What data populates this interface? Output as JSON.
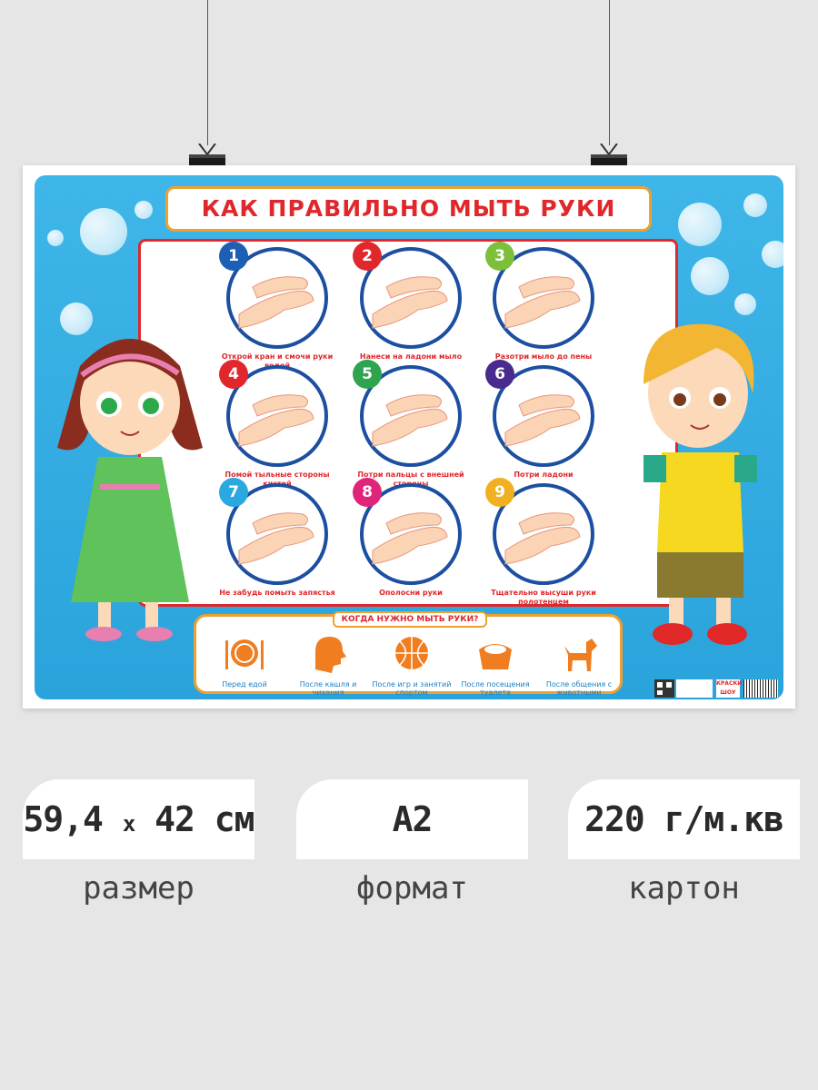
{
  "poster": {
    "title": "КАК ПРАВИЛЬНО МЫТЬ РУКИ",
    "steps": [
      {
        "number": "1",
        "caption": "Открой кран и смочи руки водой",
        "color": "#1d5fb4"
      },
      {
        "number": "2",
        "caption": "Нанеси на ладони мыло",
        "color": "#e0282c"
      },
      {
        "number": "3",
        "caption": "Разотри мыло до пены",
        "color": "#7cbf3a"
      },
      {
        "number": "4",
        "caption": "Помой тыльные стороны кистей",
        "color": "#e0282c"
      },
      {
        "number": "5",
        "caption": "Потри пальцы с внешней стороны",
        "color": "#2ea44f"
      },
      {
        "number": "6",
        "caption": "Потри ладони",
        "color": "#4a2a8c"
      },
      {
        "number": "7",
        "caption": "Не забудь помыть запястья",
        "color": "#2aa8e0"
      },
      {
        "number": "8",
        "caption": "Ополосни руки",
        "color": "#e0247a"
      },
      {
        "number": "9",
        "caption": "Тщательно высуши руки полотенцем",
        "color": "#f0b020"
      }
    ],
    "when": {
      "title": "КОГДА НУЖНО МЫТЬ РУКИ?",
      "items": [
        {
          "label": "Перед едой",
          "icon": "plate-icon"
        },
        {
          "label": "После кашля и чихания",
          "icon": "cough-icon"
        },
        {
          "label": "После игр и занятий спортом",
          "icon": "ball-icon"
        },
        {
          "label": "После посещения туалета",
          "icon": "potty-icon"
        },
        {
          "label": "После общения с животными",
          "icon": "dog-icon"
        }
      ]
    },
    "brand_logo": "КРАСКИ ШОУ"
  },
  "specs": [
    {
      "value_a": "59,4",
      "sep": "x",
      "value_b": "42 см",
      "label": "размер"
    },
    {
      "value": "A2",
      "label": "формат"
    },
    {
      "value": "220 г/м.кв",
      "label": "картон"
    }
  ],
  "colors": {
    "accent_red": "#e0282c",
    "accent_orange": "#f0a030",
    "poster_blue": "#2aa3dc",
    "circle_blue": "#1d4fa0"
  }
}
